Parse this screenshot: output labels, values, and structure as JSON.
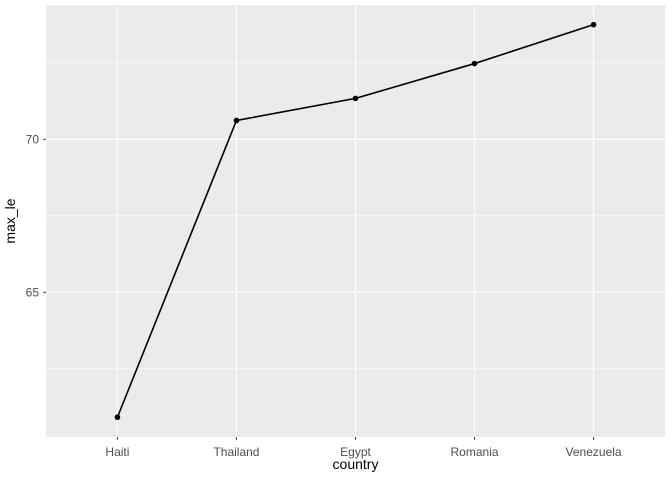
{
  "chart_data": {
    "type": "line",
    "style": "ggplot2",
    "title": "",
    "xlabel": "country",
    "ylabel": "max_le",
    "categories": [
      "Haiti",
      "Thailand",
      "Egypt",
      "Romania",
      "Venezuela"
    ],
    "values": [
      60.916,
      70.616,
      71.338,
      72.476,
      73.747
    ],
    "y_major_ticks": [
      65,
      70
    ],
    "y_major_tick_labels": [
      "65",
      "70"
    ],
    "y_minor_ticks": [
      62.5,
      67.5,
      72.5
    ],
    "ylim": [
      60.27,
      74.39
    ],
    "grid": true,
    "legend": false,
    "colors": {
      "figure_background": "#FFFFFF",
      "panel_background": "#EBEBEB",
      "gridline": "#FFFFFF",
      "series_line": "#000000",
      "series_point": "#000000",
      "tick_mark": "#333333",
      "tick_label": "#4D4D4D",
      "axis_title": "#000000"
    }
  }
}
